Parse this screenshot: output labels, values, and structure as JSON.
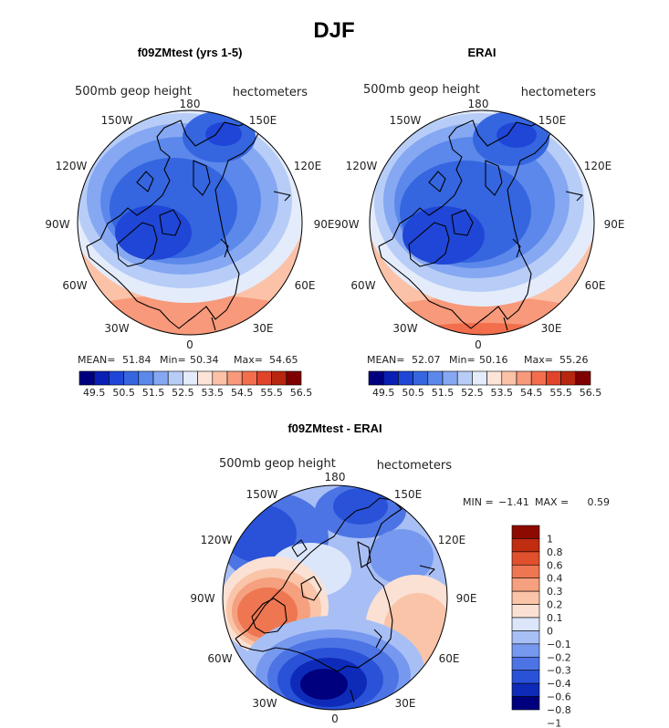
{
  "figure": {
    "title": "DJF",
    "colors": {
      "sequential": [
        "#00007f",
        "#0a1fb5",
        "#1f46d6",
        "#3566e0",
        "#5b88ea",
        "#86a8f2",
        "#b7cdf7",
        "#e4ecfb",
        "#fde4d8",
        "#fbc2a8",
        "#f7997a",
        "#f26e4c",
        "#e0442a",
        "#b7260f",
        "#7f0000"
      ],
      "difference": [
        "#00007f",
        "#0d2bb8",
        "#2a52d8",
        "#4d74e4",
        "#7698ee",
        "#a8bff6",
        "#dce6fb",
        "#fbe1d3",
        "#f9c4a8",
        "#f5a07e",
        "#ee7651",
        "#e0502c",
        "#c02d10",
        "#8e0a00"
      ]
    }
  },
  "chart_data": [
    {
      "type": "heatmap",
      "title": "f09ZMtest (yrs 1-5)",
      "subtitle_left": "500mb geop height",
      "subtitle_right": "hectometers",
      "projection": "north polar stereographic",
      "lon_labels": [
        "180",
        "150E",
        "120E",
        "90E",
        "60E",
        "30E",
        "0",
        "30W",
        "60W",
        "90W",
        "120W",
        "150W"
      ],
      "stats": {
        "mean_label": "MEAN=",
        "mean": "51.84",
        "min_label": "Min=",
        "min": "50.34",
        "max_label": "Max=",
        "max": "54.65"
      },
      "colorbar_ticks": [
        "49.5",
        "50.5",
        "51.5",
        "52.5",
        "53.5",
        "54.5",
        "55.5",
        "56.5"
      ],
      "colorbar_orientation": "horizontal",
      "range": [
        49.5,
        56.5
      ]
    },
    {
      "type": "heatmap",
      "title": "ERAI",
      "subtitle_left": "500mb geop height",
      "subtitle_right": "hectometers",
      "projection": "north polar stereographic",
      "lon_labels": [
        "180",
        "150E",
        "120E",
        "90E",
        "60E",
        "30E",
        "0",
        "30W",
        "60W",
        "90W",
        "120W",
        "150W"
      ],
      "stats": {
        "mean_label": "MEAN=",
        "mean": "52.07",
        "min_label": "Min=",
        "min": "50.16",
        "max_label": "Max=",
        "max": "55.26"
      },
      "colorbar_ticks": [
        "49.5",
        "50.5",
        "51.5",
        "52.5",
        "53.5",
        "54.5",
        "55.5",
        "56.5"
      ],
      "colorbar_orientation": "horizontal",
      "range": [
        49.5,
        56.5
      ]
    },
    {
      "type": "heatmap",
      "title": "f09ZMtest - ERAI",
      "subtitle_left": "500mb geop height",
      "subtitle_right": "hectometers",
      "projection": "north polar stereographic",
      "lon_labels": [
        "180",
        "150E",
        "120E",
        "90E",
        "60E",
        "30E",
        "0",
        "30W",
        "60W",
        "90W",
        "120W",
        "150W"
      ],
      "stats": {
        "min_label": "MIN =",
        "min": "−1.41",
        "max_label": "MAX =",
        "max": "0.59"
      },
      "colorbar_ticks": [
        "1",
        "0.8",
        "0.6",
        "0.4",
        "0.3",
        "0.2",
        "0.1",
        "0",
        "−0.1",
        "−0.2",
        "−0.3",
        "−0.4",
        "−0.6",
        "−0.8",
        "−1"
      ],
      "colorbar_orientation": "vertical",
      "range": [
        -1,
        1
      ]
    }
  ]
}
